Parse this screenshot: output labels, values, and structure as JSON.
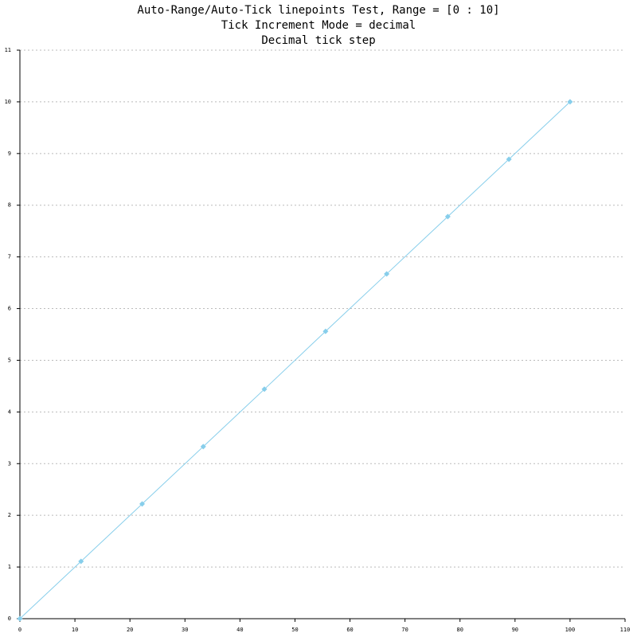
{
  "chart_data": {
    "type": "line",
    "title": "Auto-Range/Auto-Tick linepoints Test, Range = [0 : 10]",
    "subtitles": [
      "Tick Increment Mode = decimal",
      "Decimal tick step"
    ],
    "x": [
      0,
      11.11,
      22.22,
      33.33,
      44.44,
      55.56,
      66.67,
      77.78,
      88.89,
      100
    ],
    "series": [
      {
        "color": "#87ceeb",
        "values": [
          0,
          1.11,
          2.22,
          3.33,
          4.44,
          5.56,
          6.67,
          7.78,
          8.89,
          10
        ]
      }
    ],
    "xlim": [
      0,
      110
    ],
    "xticks": [
      0,
      10,
      20,
      30,
      40,
      50,
      60,
      70,
      80,
      90,
      100,
      110
    ],
    "ylim": [
      0,
      11
    ],
    "yticks": [
      0,
      1,
      2,
      3,
      4,
      5,
      6,
      7,
      8,
      9,
      10,
      11
    ],
    "grid": true,
    "markers": true
  }
}
